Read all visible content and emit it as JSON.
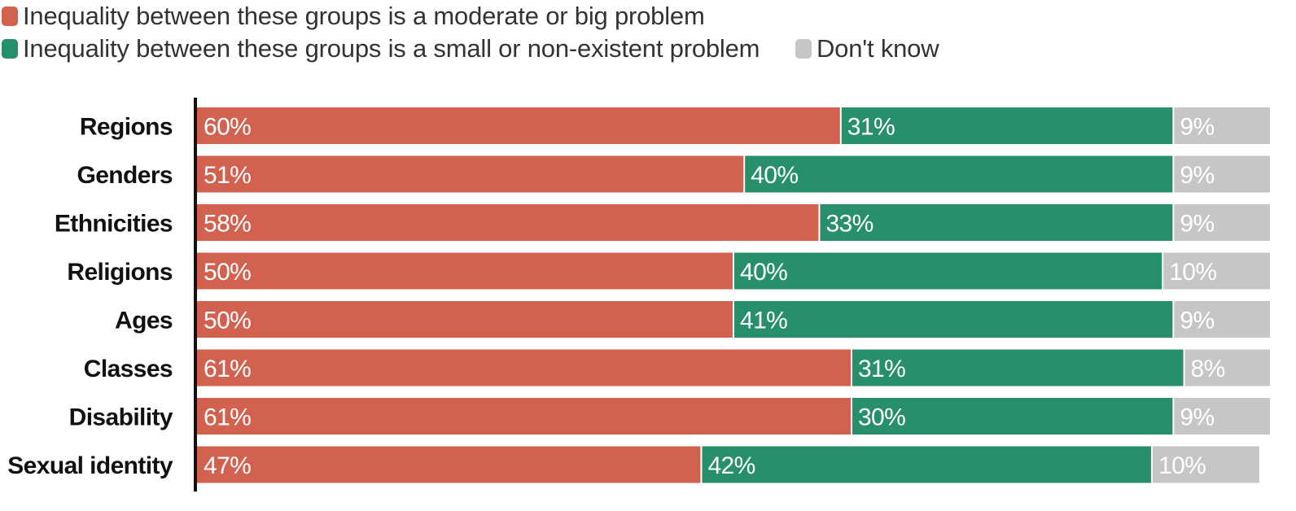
{
  "chart_data": {
    "type": "bar",
    "stacked": true,
    "orientation": "horizontal",
    "percent_stacked": true,
    "legend_position": "top-left",
    "categories": [
      "Regions",
      "Genders",
      "Ethnicities",
      "Religions",
      "Ages",
      "Classes",
      "Disability",
      "Sexual identity"
    ],
    "series": [
      {
        "name": "Inequality between these groups is a moderate or big problem",
        "color": "#d36150",
        "values": [
          60,
          51,
          58,
          50,
          50,
          61,
          61,
          47
        ],
        "labels": [
          "60%",
          "51%",
          "58%",
          "50%",
          "50%",
          "61%",
          "61%",
          "47%"
        ]
      },
      {
        "name": "Inequality between these groups is a small or non-existent problem",
        "color": "#27906a",
        "values": [
          31,
          40,
          33,
          40,
          41,
          31,
          30,
          42
        ],
        "labels": [
          "31%",
          "40%",
          "33%",
          "40%",
          "41%",
          "31%",
          "30%",
          "42%"
        ]
      },
      {
        "name": "Don't know",
        "color": "#c6c6c6",
        "values": [
          9,
          9,
          9,
          10,
          9,
          8,
          9,
          10
        ],
        "labels": [
          "9%",
          "9%",
          "9%",
          "10%",
          "9%",
          "8%",
          "9%",
          "10%"
        ]
      }
    ],
    "xlim": [
      0,
      100
    ],
    "grid": false
  }
}
